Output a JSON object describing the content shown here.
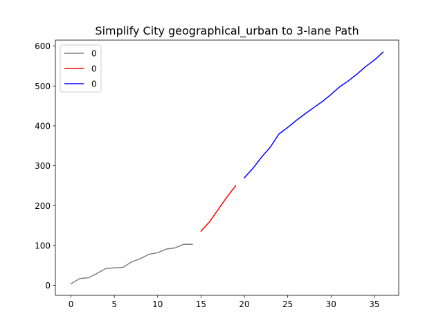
{
  "chart_data": {
    "type": "line",
    "title": "Simplify City geographical_urban to 3-lane Path",
    "xlabel": "",
    "ylabel": "",
    "xlim": [
      -1.8,
      37.8
    ],
    "ylim": [
      -25,
      615
    ],
    "xticks": [
      0,
      5,
      10,
      15,
      20,
      25,
      30,
      35
    ],
    "yticks": [
      0,
      100,
      200,
      300,
      400,
      500,
      600
    ],
    "grid": false,
    "legend_position": "upper left",
    "series": [
      {
        "name": "0",
        "color": "#808080",
        "x": [
          0,
          1,
          2,
          3,
          4,
          5,
          6,
          7,
          8,
          9,
          10,
          11,
          12,
          13,
          14
        ],
        "y": [
          4,
          17,
          19,
          30,
          42,
          44,
          45,
          59,
          67,
          78,
          82,
          91,
          94,
          103,
          103
        ]
      },
      {
        "name": "0",
        "color": "#ff0000",
        "x": [
          15,
          16,
          17,
          18,
          19
        ],
        "y": [
          136,
          160,
          191,
          222,
          250
        ]
      },
      {
        "name": "0",
        "color": "#0000ff",
        "x": [
          20,
          21,
          22,
          23,
          24,
          25,
          26,
          27,
          28,
          29,
          30,
          31,
          32,
          33,
          34,
          35,
          36
        ],
        "y": [
          270,
          294,
          322,
          347,
          380,
          396,
          414,
          430,
          446,
          461,
          479,
          498,
          513,
          530,
          549,
          565,
          585
        ]
      }
    ]
  }
}
